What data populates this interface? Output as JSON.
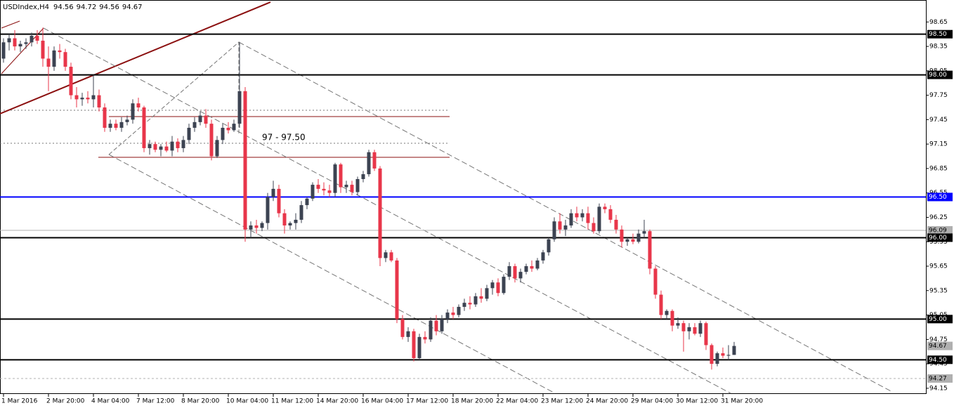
{
  "chart_data": {
    "type": "candlestick",
    "title": "USDIndex,H4",
    "annotation": "97 - 97.50",
    "bull_color": "#3c4352",
    "bear_color": "#e8364a",
    "ylim": [
      94.08,
      98.92
    ],
    "yticks": [
      98.65,
      98.35,
      98.05,
      97.75,
      97.45,
      97.15,
      96.85,
      96.55,
      96.25,
      95.95,
      95.65,
      95.35,
      95.05,
      94.75,
      94.45,
      94.15
    ],
    "levels": [
      {
        "value": 98.5,
        "label": "98.50",
        "color": "#000000",
        "style": "solid"
      },
      {
        "value": 98.0,
        "label": "98.00",
        "color": "#000000",
        "style": "solid"
      },
      {
        "value": 96.5,
        "label": "96.50",
        "color": "#0000ff",
        "style": "solid"
      },
      {
        "value": 96.09,
        "label": "96.09",
        "color": "#b0b0b0",
        "style": "thin"
      },
      {
        "value": 96.0,
        "label": "96.00",
        "color": "#000000",
        "style": "solid"
      },
      {
        "value": 95.0,
        "label": "95.00",
        "color": "#000000",
        "style": "solid"
      },
      {
        "value": 94.67,
        "label": "94.67",
        "color": "#b0b0b0",
        "style": "none"
      },
      {
        "value": 94.5,
        "label": "94.50",
        "color": "#000000",
        "style": "solid"
      },
      {
        "value": 94.27,
        "label": "94.27",
        "color": "#b0b0b0",
        "style": "dashed"
      }
    ],
    "categories": [
      "1 Mar 2016",
      null,
      null,
      null,
      null,
      null,
      null,
      null,
      "2 Mar 20:00",
      null,
      null,
      null,
      null,
      null,
      null,
      null,
      "4 Mar 04:00",
      null,
      null,
      null,
      null,
      null,
      null,
      null,
      "7 Mar 12:00",
      null,
      null,
      null,
      null,
      null,
      null,
      null,
      "8 Mar 20:00",
      null,
      null,
      null,
      null,
      null,
      null,
      null,
      "10 Mar 04:00",
      null,
      null,
      null,
      null,
      null,
      null,
      null,
      "11 Mar 12:00",
      null,
      null,
      null,
      null,
      null,
      null,
      null,
      "14 Mar 20:00",
      null,
      null,
      null,
      null,
      null,
      null,
      null,
      "16 Mar 04:00",
      null,
      null,
      null,
      null,
      null,
      null,
      null,
      "17 Mar 12:00",
      null,
      null,
      null,
      null,
      null,
      null,
      null,
      "18 Mar 20:00",
      null,
      null,
      null,
      null,
      null,
      null,
      null,
      "22 Mar 04:00",
      null,
      null,
      null,
      null,
      null,
      null,
      null,
      "23 Mar 12:00",
      null,
      null,
      null,
      null,
      null,
      null,
      null,
      "24 Mar 20:00",
      null,
      null,
      null,
      null,
      null,
      null,
      null,
      "29 Mar 04:00",
      null,
      null,
      null,
      null,
      null,
      null,
      null,
      "30 Mar 12:00",
      null,
      null,
      null,
      null,
      null,
      null,
      null,
      "31 Mar 20:00",
      null,
      null
    ],
    "ohlc": [
      [
        98.2,
        98.45,
        98.15,
        98.4
      ],
      [
        98.4,
        98.5,
        98.3,
        98.45
      ],
      [
        98.45,
        98.55,
        98.3,
        98.35
      ],
      [
        98.35,
        98.42,
        98.28,
        98.38
      ],
      [
        98.38,
        98.45,
        98.32,
        98.4
      ],
      [
        98.4,
        98.52,
        98.35,
        98.48
      ],
      [
        98.48,
        98.55,
        98.38,
        98.42
      ],
      [
        98.42,
        98.58,
        98.1,
        98.2
      ],
      [
        98.2,
        98.35,
        97.8,
        98.1
      ],
      [
        98.1,
        98.35,
        98.05,
        98.3
      ],
      [
        98.3,
        98.38,
        98.2,
        98.28
      ],
      [
        98.28,
        98.32,
        98.05,
        98.1
      ],
      [
        98.1,
        98.15,
        97.7,
        97.75
      ],
      [
        97.75,
        97.85,
        97.6,
        97.7
      ],
      [
        97.7,
        97.78,
        97.62,
        97.72
      ],
      [
        97.72,
        97.8,
        97.65,
        97.7
      ],
      [
        97.7,
        98.0,
        97.6,
        97.75
      ],
      [
        97.75,
        97.82,
        97.55,
        97.6
      ],
      [
        97.6,
        97.65,
        97.3,
        97.35
      ],
      [
        97.35,
        97.45,
        97.3,
        97.4
      ],
      [
        97.4,
        97.45,
        97.32,
        97.35
      ],
      [
        97.35,
        97.48,
        97.3,
        97.42
      ],
      [
        97.42,
        97.5,
        97.38,
        97.45
      ],
      [
        97.45,
        97.7,
        97.4,
        97.65
      ],
      [
        97.65,
        97.72,
        97.55,
        97.6
      ],
      [
        97.6,
        97.62,
        97.05,
        97.1
      ],
      [
        97.1,
        97.2,
        97.02,
        97.15
      ],
      [
        97.15,
        97.18,
        97.05,
        97.08
      ],
      [
        97.08,
        97.15,
        97.0,
        97.12
      ],
      [
        97.12,
        97.18,
        97.05,
        97.07
      ],
      [
        97.07,
        97.25,
        97.0,
        97.18
      ],
      [
        97.18,
        97.22,
        97.05,
        97.1
      ],
      [
        97.1,
        97.25,
        97.05,
        97.2
      ],
      [
        97.2,
        97.4,
        97.15,
        97.35
      ],
      [
        97.35,
        97.48,
        97.3,
        97.42
      ],
      [
        97.42,
        97.55,
        97.38,
        97.5
      ],
      [
        97.5,
        97.58,
        97.35,
        97.4
      ],
      [
        97.4,
        97.45,
        96.95,
        97.0
      ],
      [
        97.0,
        97.25,
        96.98,
        97.2
      ],
      [
        97.2,
        97.4,
        97.15,
        97.35
      ],
      [
        97.35,
        97.42,
        97.28,
        97.32
      ],
      [
        97.32,
        97.45,
        97.3,
        97.4
      ],
      [
        97.4,
        98.4,
        97.35,
        97.8
      ],
      [
        97.8,
        97.85,
        95.95,
        96.1
      ],
      [
        96.1,
        96.2,
        96.0,
        96.15
      ],
      [
        96.15,
        96.22,
        96.05,
        96.12
      ],
      [
        96.12,
        96.2,
        96.08,
        96.18
      ],
      [
        96.18,
        96.55,
        96.1,
        96.5
      ],
      [
        96.5,
        96.7,
        96.45,
        96.6
      ],
      [
        96.6,
        96.65,
        96.25,
        96.3
      ],
      [
        96.3,
        96.35,
        96.05,
        96.15
      ],
      [
        96.15,
        96.2,
        96.1,
        96.18
      ],
      [
        96.18,
        96.3,
        96.1,
        96.22
      ],
      [
        96.22,
        96.45,
        96.18,
        96.4
      ],
      [
        96.4,
        96.5,
        96.35,
        96.48
      ],
      [
        96.48,
        96.68,
        96.45,
        96.65
      ],
      [
        96.65,
        96.72,
        96.55,
        96.6
      ],
      [
        96.6,
        96.68,
        96.52,
        96.58
      ],
      [
        96.58,
        96.65,
        96.5,
        96.55
      ],
      [
        96.55,
        96.92,
        96.5,
        96.9
      ],
      [
        96.9,
        96.92,
        96.55,
        96.62
      ],
      [
        96.62,
        96.7,
        96.55,
        96.65
      ],
      [
        96.65,
        96.7,
        96.52,
        96.56
      ],
      [
        96.56,
        96.75,
        96.52,
        96.72
      ],
      [
        96.72,
        96.82,
        96.68,
        96.78
      ],
      [
        96.78,
        97.08,
        96.75,
        97.05
      ],
      [
        97.05,
        97.08,
        96.82,
        96.85
      ],
      [
        96.85,
        96.88,
        95.65,
        95.75
      ],
      [
        95.75,
        95.85,
        95.7,
        95.82
      ],
      [
        95.82,
        95.85,
        95.7,
        95.72
      ],
      [
        95.72,
        95.75,
        94.95,
        95.0
      ],
      [
        95.0,
        95.05,
        94.75,
        94.78
      ],
      [
        94.78,
        94.9,
        94.72,
        94.85
      ],
      [
        94.85,
        94.88,
        94.48,
        94.52
      ],
      [
        94.52,
        94.82,
        94.5,
        94.78
      ],
      [
        94.78,
        94.85,
        94.7,
        94.75
      ],
      [
        94.75,
        95.02,
        94.72,
        94.98
      ],
      [
        94.98,
        95.05,
        94.8,
        94.85
      ],
      [
        94.85,
        95.05,
        94.82,
        95.0
      ],
      [
        95.0,
        95.12,
        94.95,
        95.08
      ],
      [
        95.08,
        95.15,
        95.0,
        95.05
      ],
      [
        95.05,
        95.18,
        95.02,
        95.15
      ],
      [
        95.15,
        95.25,
        95.1,
        95.2
      ],
      [
        95.2,
        95.28,
        95.12,
        95.18
      ],
      [
        95.18,
        95.32,
        95.15,
        95.28
      ],
      [
        95.28,
        95.38,
        95.2,
        95.25
      ],
      [
        95.25,
        95.42,
        95.22,
        95.38
      ],
      [
        95.38,
        95.48,
        95.3,
        95.45
      ],
      [
        95.45,
        95.5,
        95.28,
        95.32
      ],
      [
        95.32,
        95.55,
        95.3,
        95.52
      ],
      [
        95.52,
        95.7,
        95.48,
        95.65
      ],
      [
        95.65,
        95.68,
        95.45,
        95.5
      ],
      [
        95.5,
        95.62,
        95.45,
        95.58
      ],
      [
        95.58,
        95.68,
        95.55,
        95.65
      ],
      [
        95.65,
        95.72,
        95.58,
        95.62
      ],
      [
        95.62,
        95.75,
        95.6,
        95.72
      ],
      [
        95.72,
        95.85,
        95.68,
        95.82
      ],
      [
        95.82,
        96.0,
        95.78,
        95.98
      ],
      [
        95.98,
        96.25,
        95.95,
        96.2
      ],
      [
        96.2,
        96.3,
        96.05,
        96.1
      ],
      [
        96.1,
        96.22,
        96.02,
        96.15
      ],
      [
        96.15,
        96.35,
        96.12,
        96.3
      ],
      [
        96.3,
        96.38,
        96.2,
        96.25
      ],
      [
        96.25,
        96.35,
        96.2,
        96.3
      ],
      [
        96.3,
        96.38,
        96.1,
        96.18
      ],
      [
        96.18,
        96.25,
        96.05,
        96.08
      ],
      [
        96.08,
        96.42,
        96.05,
        96.38
      ],
      [
        96.38,
        96.42,
        96.3,
        96.35
      ],
      [
        96.35,
        96.4,
        96.18,
        96.22
      ],
      [
        96.22,
        96.28,
        96.05,
        96.1
      ],
      [
        96.1,
        96.15,
        95.88,
        95.95
      ],
      [
        95.95,
        96.0,
        95.9,
        95.98
      ],
      [
        95.98,
        96.05,
        95.92,
        95.95
      ],
      [
        95.95,
        96.1,
        95.93,
        96.05
      ],
      [
        96.05,
        96.22,
        96.0,
        96.08
      ],
      [
        96.08,
        96.1,
        95.55,
        95.62
      ],
      [
        95.62,
        95.65,
        95.25,
        95.3
      ],
      [
        95.3,
        95.35,
        95.0,
        95.05
      ],
      [
        95.05,
        95.12,
        95.0,
        95.1
      ],
      [
        95.1,
        95.12,
        94.85,
        94.92
      ],
      [
        94.92,
        95.02,
        94.88,
        94.95
      ],
      [
        94.95,
        94.98,
        94.6,
        94.85
      ],
      [
        94.85,
        94.95,
        94.75,
        94.9
      ],
      [
        94.9,
        94.95,
        94.8,
        94.82
      ],
      [
        94.82,
        94.98,
        94.78,
        94.95
      ],
      [
        94.95,
        94.97,
        94.62,
        94.68
      ],
      [
        94.68,
        94.7,
        94.38,
        94.45
      ],
      [
        94.45,
        94.6,
        94.42,
        94.58
      ],
      [
        94.58,
        94.65,
        94.52,
        94.55
      ],
      [
        94.55,
        94.68,
        94.5,
        94.56
      ],
      [
        94.56,
        94.72,
        94.56,
        94.67
      ]
    ]
  }
}
